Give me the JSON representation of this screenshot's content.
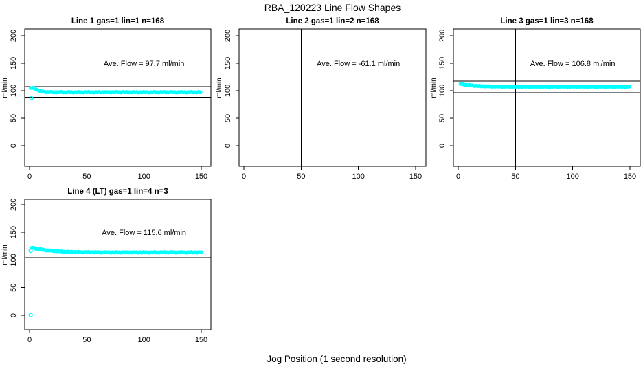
{
  "chart_data": {
    "type": "scatter",
    "title": "RBA_120223  Line Flow Shapes",
    "xlabel": "Jog Position (1 second resolution)",
    "ylabel": "ml/min",
    "xlim": [
      -4,
      158
    ],
    "ylim": [
      -33,
      213
    ],
    "x_ticks": [
      0,
      50,
      100,
      150
    ],
    "y_ticks": [
      0,
      50,
      100,
      150,
      200
    ],
    "point_color": "#00FFFF",
    "line_color": "#000000",
    "vline_x": 50,
    "annotation_anchor": {
      "x": 100,
      "y": 150
    },
    "panels": [
      {
        "title": "Line 1 gas=1 lin=1 n=168",
        "annotation": "Ave. Flow =  97.7  ml/min",
        "ave_flow": 97.7,
        "hlines": [
          107.5,
          87.9
        ],
        "samples": [
          [
            1,
            104.5
          ],
          [
            2,
            105
          ],
          [
            3,
            105.2
          ],
          [
            4,
            104.8
          ],
          [
            5,
            103.5
          ],
          [
            6,
            102.5
          ],
          [
            7,
            101.5
          ],
          [
            8,
            100.5
          ],
          [
            9,
            99.5
          ],
          [
            10,
            99
          ],
          [
            11,
            98.5
          ],
          [
            12,
            98
          ],
          [
            14,
            97.6
          ],
          [
            17,
            97.4
          ],
          [
            20,
            97.3
          ],
          [
            30,
            97.2
          ],
          [
            50,
            97.2
          ],
          [
            75,
            97.3
          ],
          [
            100,
            97.2
          ],
          [
            125,
            97.3
          ],
          [
            150,
            97.2
          ]
        ],
        "outliers": [
          [
            1.5,
            86.5
          ]
        ]
      },
      {
        "title": "Line 2 gas=1 lin=2 n=168",
        "annotation": "Ave. Flow =  -61.1  ml/min",
        "ave_flow": -61.1,
        "hlines": [],
        "samples": [],
        "outliers": []
      },
      {
        "title": "Line 3 gas=1 lin=3 n=168",
        "annotation": "Ave. Flow =  106.8  ml/min",
        "ave_flow": 106.8,
        "hlines": [
          117.5,
          96.1
        ],
        "samples": [
          [
            2,
            112.5
          ],
          [
            3,
            112.5
          ],
          [
            4,
            112
          ],
          [
            5,
            111.5
          ],
          [
            6,
            111
          ],
          [
            8,
            110.5
          ],
          [
            10,
            110
          ],
          [
            12,
            109.5
          ],
          [
            15,
            109
          ],
          [
            20,
            108.3
          ],
          [
            25,
            108
          ],
          [
            30,
            107.8
          ],
          [
            40,
            107.5
          ],
          [
            50,
            107.4
          ],
          [
            75,
            107.3
          ],
          [
            100,
            107.4
          ],
          [
            125,
            107.3
          ],
          [
            150,
            107.4
          ]
        ],
        "outliers": []
      },
      {
        "title": "Line 4 (LT) gas=1 lin=4 n=3",
        "annotation": "Ave. Flow =  115.6  ml/min",
        "ave_flow": 115.6,
        "hlines": [
          127.2,
          104.0
        ],
        "samples": [
          [
            1.5,
            121.5
          ],
          [
            2,
            122
          ],
          [
            3,
            122
          ],
          [
            4,
            121.5
          ],
          [
            5,
            121
          ],
          [
            6,
            120.5
          ],
          [
            8,
            119.5
          ],
          [
            10,
            119
          ],
          [
            12,
            118.3
          ],
          [
            15,
            117.5
          ],
          [
            20,
            116.5
          ],
          [
            25,
            115.7
          ],
          [
            30,
            115
          ],
          [
            35,
            114.6
          ],
          [
            40,
            114.3
          ],
          [
            50,
            114
          ],
          [
            60,
            113.8
          ],
          [
            75,
            113.7
          ],
          [
            100,
            113.7
          ],
          [
            125,
            113.8
          ],
          [
            150,
            113.7
          ]
        ],
        "outliers": [
          [
            1,
            116.5
          ],
          [
            1,
            0.5
          ]
        ]
      }
    ]
  }
}
